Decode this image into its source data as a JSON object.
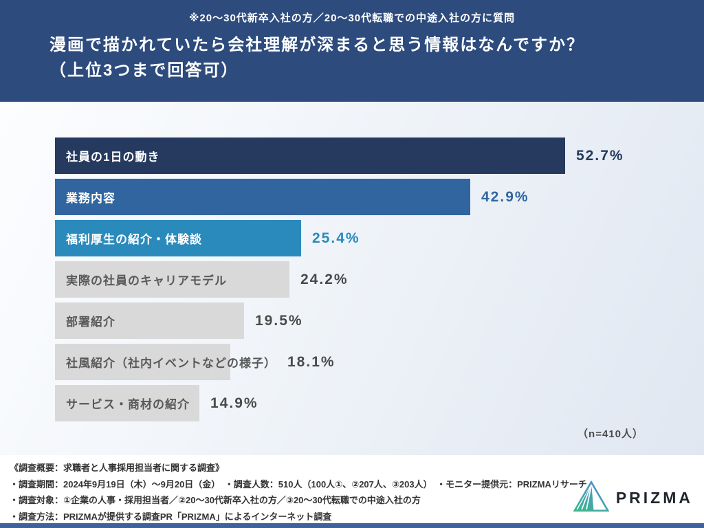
{
  "header": {
    "note": "※20〜30代新卒入社の方／20〜30代転職での中途入社の方に質問",
    "title_line1": "漫画で描かれていたら会社理解が深まると思う情報はなんですか？",
    "title_line2": "（上位3つまで回答可）"
  },
  "chart_data": {
    "type": "bar",
    "orientation": "horizontal",
    "title": "漫画で描かれていたら会社理解が深まると思う情報はなんですか？（上位3つまで回答可）",
    "categories": [
      "社員の1日の動き",
      "業務内容",
      "福利厚生の紹介・体験談",
      "実際の社員のキャリアモデル",
      "部署紹介",
      "社風紹介（社内イベントなどの様子）",
      "サービス・商材の紹介"
    ],
    "values": [
      52.7,
      42.9,
      25.4,
      24.2,
      19.5,
      18.1,
      14.9
    ],
    "value_labels": [
      "52.7%",
      "42.9%",
      "25.4%",
      "24.2%",
      "19.5%",
      "18.1%",
      "14.9%"
    ],
    "bar_colors": [
      "#253a5e",
      "#31659f",
      "#2b8abc",
      "#d9d9d9",
      "#d9d9d9",
      "#d9d9d9",
      "#d9d9d9"
    ],
    "label_colors": [
      "#ffffff",
      "#ffffff",
      "#ffffff",
      "#595959",
      "#595959",
      "#595959",
      "#595959"
    ],
    "pct_colors": [
      "#253a5e",
      "#31659f",
      "#2b8abc",
      "#4a4a4a",
      "#4a4a4a",
      "#4a4a4a",
      "#4a4a4a"
    ],
    "xlim": [
      0,
      60
    ],
    "grid": false,
    "legend": false,
    "sample_size_note": "（n=410人）"
  },
  "footer": {
    "lines": [
      "《調査概要：求職者と人事採用担当者に関する調査》",
      "・調査期間：2024年9月19日（木）〜9月20日（金）　・調査人数：510人（100人①、②207人、③203人）　・モニター提供元：PRIZMAリサーチ",
      "・調査対象：①企業の人事・採用担当者／②20〜30代新卒入社の方／③20〜30代転職での中途入社の方",
      "・調査方法：PRIZMAが提供する調査PR「PRIZMA」によるインターネット調査"
    ],
    "logo_text": "PRIZMA"
  },
  "colors": {
    "header_bg": "#2d4b7d",
    "chart_bg_start": "#fcfdff",
    "chart_bg_end": "#e0e7f1",
    "bar_navy": "#253a5e",
    "bar_blue": "#31659f",
    "bar_teal": "#2b8abc",
    "bar_gray": "#d9d9d9",
    "footer_text": "#333333",
    "bottom_strip": "#40619b",
    "logo_gradient_top": "#4e8fd0",
    "logo_gradient_bottom": "#3cb68e"
  }
}
